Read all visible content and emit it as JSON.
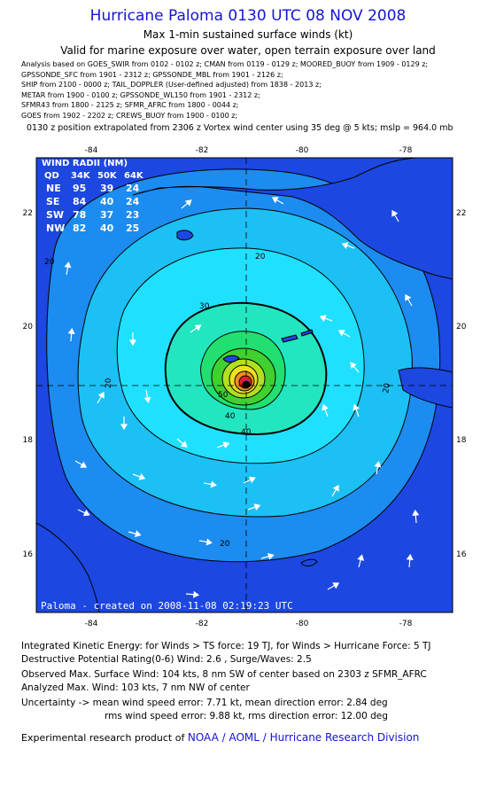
{
  "header": {
    "title": "Hurricane Paloma 0130 UTC 08 NOV 2008",
    "subtitle": "Max 1-min sustained surface winds (kt)",
    "valid_for": "Valid for marine exposure over water, open terrain exposure over land"
  },
  "sources": [
    "Analysis based on  GOES_SWIR from 0102 - 0102 z;  CMAN from 0119 - 0129 z;  MOORED_BUOY from 1909 - 0129 z;",
    "GPSSONDE_SFC from 1901 - 2312 z;  GPSSONDE_MBL from 1901 - 2126 z;",
    "SHIP from 2100 - 0000 z;  TAIL_DOPPLER (User-defined adjusted) from 1838 - 2013 z;",
    "METAR from 1900 - 0100 z;  GPSSONDE_WL150 from 1901 - 2312 z;",
    "SFMR43 from 1800 - 2125 z;  SFMR_AFRC from 1800 - 0044 z;",
    "GOES from 1902 - 2202 z;  CREWS_BUOY from 1900 - 0100 z;"
  ],
  "position_note": "0130 z position extrapolated from 2306 z Vortex wind center using 35 deg @ 5 kts; mslp = 964.0 mb",
  "map": {
    "lon_ticks_top": [
      "-84",
      "-82",
      "-80",
      "-78"
    ],
    "lon_ticks_bottom": [
      "-84",
      "-82",
      "-80",
      "-78"
    ],
    "lat_ticks": [
      "22",
      "20",
      "18",
      "16"
    ],
    "contour_labels": [
      "20",
      "30",
      "40",
      "50",
      "20",
      "20",
      "20",
      "20",
      "40"
    ],
    "credit": "Paloma - created on 2008-11-08 02:19:23 UTC",
    "colors": {
      "ocean_outer": "#1c47e0",
      "band_1": "#1c8cf0",
      "band_2": "#1cc0f4",
      "band_3": "#20e0ff",
      "band_4": "#22e6c0",
      "band_5": "#22e070",
      "band_6": "#40d030",
      "band_7": "#b0e020",
      "band_8": "#f0e020",
      "band_9": "#f09020",
      "band_10": "#e02020",
      "band_11": "#c020a0",
      "land": "#1c47e0"
    }
  },
  "wind_radii": {
    "title": "WIND RADII (NM)",
    "headers": [
      "QD",
      "34K",
      "50K",
      "64K"
    ],
    "rows": [
      [
        "NE",
        "95",
        "39",
        "24"
      ],
      [
        "SE",
        "84",
        "40",
        "24"
      ],
      [
        "SW",
        "78",
        "37",
        "23"
      ],
      [
        "NW",
        "82",
        "40",
        "25"
      ]
    ]
  },
  "info": {
    "ike": "Integrated Kinetic Energy:  for Winds > TS force: 19 TJ,  for Winds > Hurricane Force: 5 TJ",
    "dpr": "Destructive Potential Rating(0-6)   Wind: 2.6 , Surge/Waves: 2.5",
    "observed": "Observed Max. Surface Wind: 104 kts, 8 nm SW of center based on 2303 z SFMR_AFRC",
    "analyzed": "Analyzed Max. Wind: 103 kts, 7 nm NW of center",
    "uncertainty_1": "Uncertainty -> mean wind speed error: 7.71 kt,   mean direction error: 2.84 deg",
    "uncertainty_2": "rms wind speed error: 9.88 kt,   rms direction error: 12.00 deg",
    "product_prefix": "Experimental research product of ",
    "product_org": "NOAA / AOML / Hurricane Research Division"
  }
}
